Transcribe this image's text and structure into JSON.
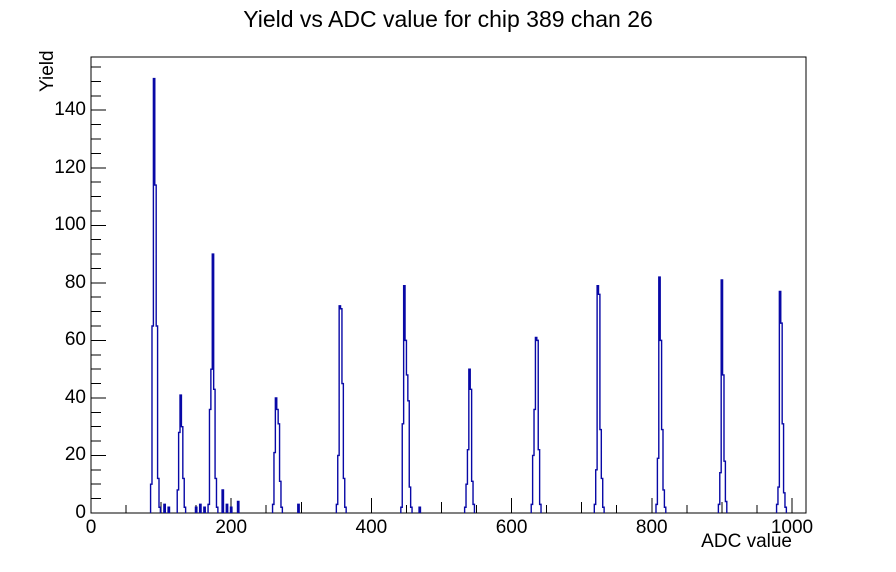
{
  "page": {
    "background": "#ffffff"
  },
  "chart_data": {
    "type": "bar",
    "title": "Yield vs ADC value for chip 389 chan 26",
    "xlabel": "ADC value",
    "ylabel": "Yield",
    "xlim": [
      0,
      1020
    ],
    "ylim": [
      0,
      158.5
    ],
    "grid": false,
    "legend_position": "none",
    "x_tick_labels": [
      0,
      200,
      400,
      600,
      800,
      1000
    ],
    "x_medium_ticks": [
      100,
      300,
      500,
      700,
      900
    ],
    "x_minor_step": 50,
    "y_tick_labels": [
      0,
      20,
      40,
      60,
      80,
      100,
      120,
      140
    ],
    "y_minor_step": 5,
    "line_color": "#0808a6",
    "axis_color": "#000000",
    "bin_half_width": 1,
    "bins": [
      [
        86,
        10
      ],
      [
        88,
        65
      ],
      [
        90,
        151
      ],
      [
        92,
        114
      ],
      [
        94,
        65
      ],
      [
        96,
        12
      ],
      [
        98,
        2
      ],
      [
        105,
        3
      ],
      [
        111,
        2
      ],
      [
        124,
        8
      ],
      [
        126,
        28
      ],
      [
        128,
        41
      ],
      [
        130,
        30
      ],
      [
        132,
        12
      ],
      [
        134,
        2
      ],
      [
        150,
        2
      ],
      [
        156,
        3
      ],
      [
        162,
        2
      ],
      [
        168,
        3
      ],
      [
        170,
        36
      ],
      [
        172,
        50
      ],
      [
        174,
        90
      ],
      [
        176,
        43
      ],
      [
        178,
        12
      ],
      [
        180,
        2
      ],
      [
        188,
        8
      ],
      [
        194,
        3
      ],
      [
        200,
        2
      ],
      [
        210,
        4
      ],
      [
        260,
        3
      ],
      [
        262,
        21
      ],
      [
        264,
        40
      ],
      [
        266,
        36
      ],
      [
        268,
        31
      ],
      [
        270,
        11
      ],
      [
        272,
        2
      ],
      [
        296,
        3
      ],
      [
        351,
        3
      ],
      [
        353,
        20
      ],
      [
        355,
        72
      ],
      [
        357,
        71
      ],
      [
        359,
        45
      ],
      [
        361,
        12
      ],
      [
        363,
        2
      ],
      [
        443,
        2
      ],
      [
        445,
        31
      ],
      [
        447,
        79
      ],
      [
        449,
        60
      ],
      [
        451,
        48
      ],
      [
        453,
        39
      ],
      [
        455,
        9
      ],
      [
        457,
        2
      ],
      [
        469,
        2
      ],
      [
        534,
        2
      ],
      [
        536,
        10
      ],
      [
        538,
        22
      ],
      [
        540,
        50
      ],
      [
        542,
        43
      ],
      [
        544,
        11
      ],
      [
        546,
        3
      ],
      [
        629,
        3
      ],
      [
        631,
        20
      ],
      [
        633,
        36
      ],
      [
        635,
        61
      ],
      [
        637,
        60
      ],
      [
        639,
        22
      ],
      [
        641,
        3
      ],
      [
        719,
        3
      ],
      [
        721,
        15
      ],
      [
        723,
        79
      ],
      [
        725,
        76
      ],
      [
        727,
        29
      ],
      [
        729,
        12
      ],
      [
        731,
        2
      ],
      [
        807,
        3
      ],
      [
        809,
        19
      ],
      [
        811,
        82
      ],
      [
        813,
        60
      ],
      [
        815,
        29
      ],
      [
        817,
        8
      ],
      [
        819,
        2
      ],
      [
        896,
        3
      ],
      [
        898,
        14
      ],
      [
        900,
        81
      ],
      [
        902,
        48
      ],
      [
        904,
        18
      ],
      [
        906,
        4
      ],
      [
        979,
        3
      ],
      [
        981,
        9
      ],
      [
        983,
        77
      ],
      [
        985,
        66
      ],
      [
        987,
        31
      ],
      [
        989,
        7
      ],
      [
        991,
        2
      ]
    ]
  }
}
